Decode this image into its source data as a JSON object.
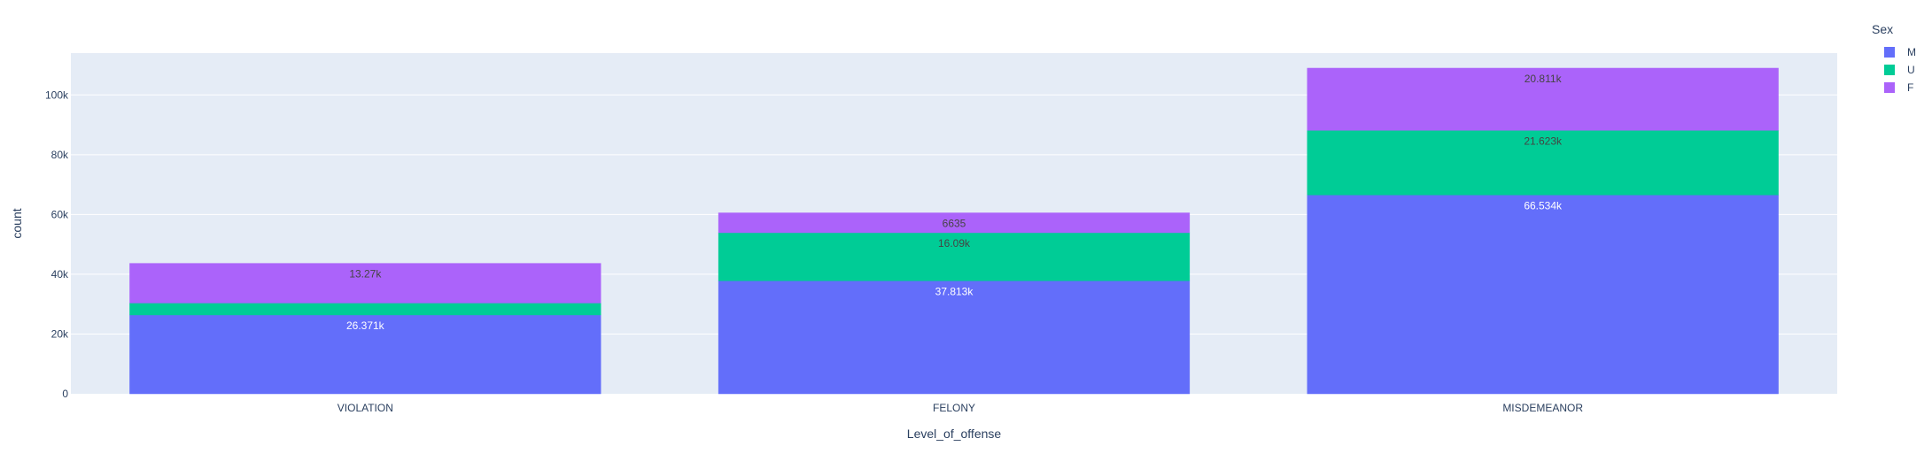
{
  "chart_data": {
    "type": "bar",
    "barmode": "stack",
    "title": "",
    "xlabel": "Level_of_offense",
    "ylabel": "count",
    "categories": [
      "VIOLATION",
      "FELONY",
      "MISDEMEANOR"
    ],
    "ylim": [
      0,
      114000
    ],
    "yticks": [
      0,
      20000,
      40000,
      60000,
      80000,
      100000
    ],
    "ytick_labels": [
      "0",
      "20k",
      "40k",
      "60k",
      "80k",
      "100k"
    ],
    "grid": true,
    "legend": {
      "title": "Sex",
      "position": "top-right"
    },
    "series": [
      {
        "name": "M",
        "color": "#636efa",
        "values": [
          26371,
          37813,
          66534
        ],
        "labels": [
          "26.371k",
          "37.813k",
          "66.534k"
        ],
        "label_color": "#ffffff"
      },
      {
        "name": "U",
        "color": "#00cc96",
        "values": [
          4000,
          16090,
          21623
        ],
        "labels": [
          "",
          "16.09k",
          "21.623k"
        ],
        "label_color": "#444444"
      },
      {
        "name": "F",
        "color": "#ab63fa",
        "values": [
          13270,
          6635,
          20811
        ],
        "labels": [
          "13.27k",
          "6635",
          "20.811k"
        ],
        "label_color": "#444444"
      }
    ]
  }
}
